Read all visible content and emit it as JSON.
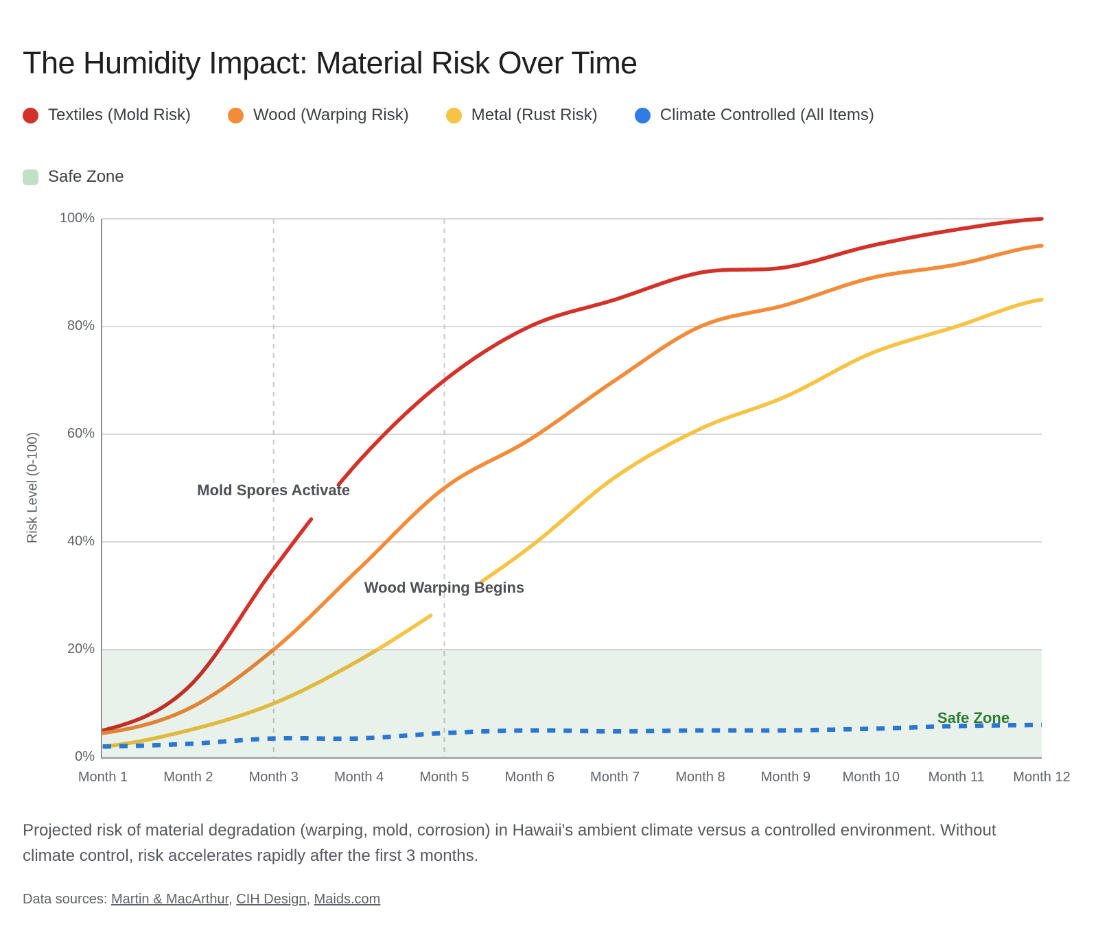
{
  "title": "The Humidity Impact: Material Risk Over Time",
  "legend": {
    "items": [
      {
        "label": "Textiles (Mold Risk)",
        "color": "#d23228"
      },
      {
        "label": "Wood (Warping Risk)",
        "color": "#f48b39"
      },
      {
        "label": "Metal (Rust Risk)",
        "color": "#f6c344"
      },
      {
        "label": "Climate Controlled (All Items)",
        "color": "#2e7ce4"
      }
    ],
    "safe_zone": {
      "label": "Safe Zone",
      "color": "#c2e0c6"
    }
  },
  "chart_data": {
    "type": "line",
    "title": "The Humidity Impact: Material Risk Over Time",
    "xlabel": "",
    "ylabel": "Risk Level (0-100)",
    "x_labels": [
      "Month 1",
      "Month 2",
      "Month 3",
      "Month 4",
      "Month 5",
      "Month 6",
      "Month 7",
      "Month 8",
      "Month 9",
      "Month 10",
      "Month 11",
      "Month 12"
    ],
    "y_ticks": [
      {
        "value": 0,
        "label": "0%"
      },
      {
        "value": 20,
        "label": "20%"
      },
      {
        "value": 40,
        "label": "40%"
      },
      {
        "value": 60,
        "label": "60%"
      },
      {
        "value": 80,
        "label": "80%"
      },
      {
        "value": 100,
        "label": "100%"
      }
    ],
    "ylim": [
      0,
      100
    ],
    "grid": true,
    "legend_position": "top",
    "series": [
      {
        "name": "Textiles (Mold Risk)",
        "color": "#d23228",
        "style": "solid",
        "values": [
          5,
          13,
          35,
          55,
          70,
          80,
          85,
          90,
          91,
          95,
          98,
          100
        ],
        "gaps": [
          [
            3.45,
            3.76
          ]
        ]
      },
      {
        "name": "Wood (Warping Risk)",
        "color": "#f48b39",
        "style": "solid",
        "values": [
          4.5,
          9,
          20,
          35,
          50,
          59,
          70,
          80,
          84,
          89,
          91.5,
          95
        ],
        "gaps": []
      },
      {
        "name": "Metal (Rust Risk)",
        "color": "#f6c344",
        "style": "solid",
        "values": [
          2,
          5,
          10,
          18,
          28,
          39,
          52,
          61,
          67,
          75,
          80,
          85
        ],
        "gaps": [
          [
            4.85,
            5.43
          ]
        ]
      },
      {
        "name": "Climate Controlled (All Items)",
        "color": "#2e7ce4",
        "style": "dashed",
        "values": [
          2,
          2.5,
          3.5,
          3.5,
          4.5,
          5,
          4.8,
          5,
          5,
          5.3,
          5.8,
          6
        ],
        "gaps": []
      }
    ],
    "safe_zone": {
      "from": 0,
      "to": 20,
      "color": "#e9f2ea"
    },
    "guide_months": [
      3,
      5
    ],
    "annotations": [
      {
        "text": "Mold Spores Activate",
        "month": 3.0,
        "value": 49.5,
        "color": "#4d5156"
      },
      {
        "text": "Wood Warping Begins",
        "month": 5.0,
        "value": 31.5,
        "color": "#4d5156"
      },
      {
        "text": "Safe Zone",
        "month": 11.2,
        "value": 7.2,
        "color": "#2e7d32"
      }
    ]
  },
  "caption": "Projected risk of material degradation (warping, mold, corrosion) in Hawaii's ambient climate versus a controlled environment. Without climate control, risk accelerates rapidly after the first 3 months.",
  "sources": {
    "prefix": "Data sources:",
    "links": [
      "Martin & MacArthur",
      "CIH Design",
      "Maids.com"
    ],
    "separator": ", "
  }
}
